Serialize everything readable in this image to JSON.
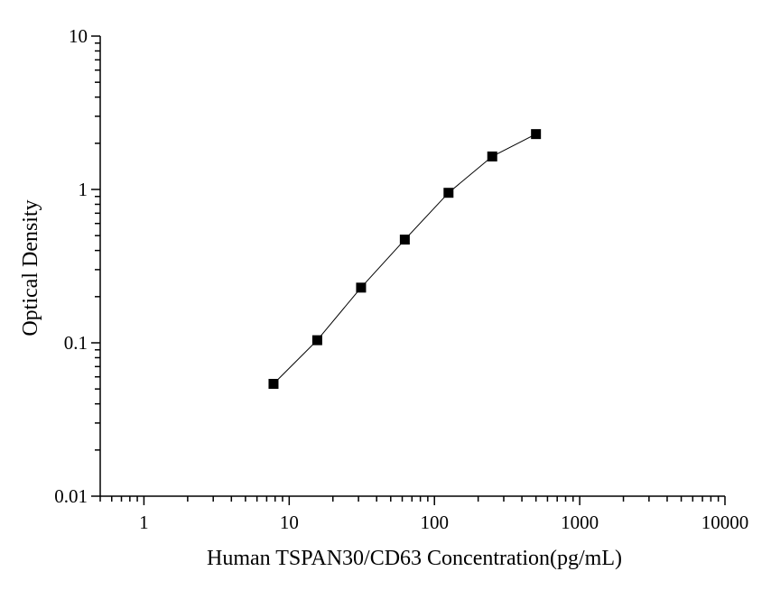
{
  "chart_data": {
    "type": "scatter",
    "xlabel": "Human TSPAN30/CD63 Concentration(pg/mL)",
    "ylabel": "Optical Density",
    "x_scale": "log",
    "y_scale": "log",
    "xlim": [
      0.5,
      10000
    ],
    "ylim": [
      0.01,
      10
    ],
    "x_ticks": [
      1,
      10,
      100,
      1000,
      10000
    ],
    "x_tick_labels": [
      "1",
      "10",
      "100",
      "1000",
      "10000"
    ],
    "y_ticks": [
      0.01,
      0.1,
      1,
      10
    ],
    "y_tick_labels": [
      "0.01",
      "0.1",
      "1",
      "10"
    ],
    "grid": false,
    "series": [
      {
        "x": [
          7.8,
          15.6,
          31.25,
          62.5,
          125,
          250,
          500
        ],
        "y": [
          0.054,
          0.104,
          0.229,
          0.471,
          0.951,
          1.641,
          2.296
        ],
        "marker": "square",
        "connected": true,
        "color": "#000000"
      }
    ]
  }
}
